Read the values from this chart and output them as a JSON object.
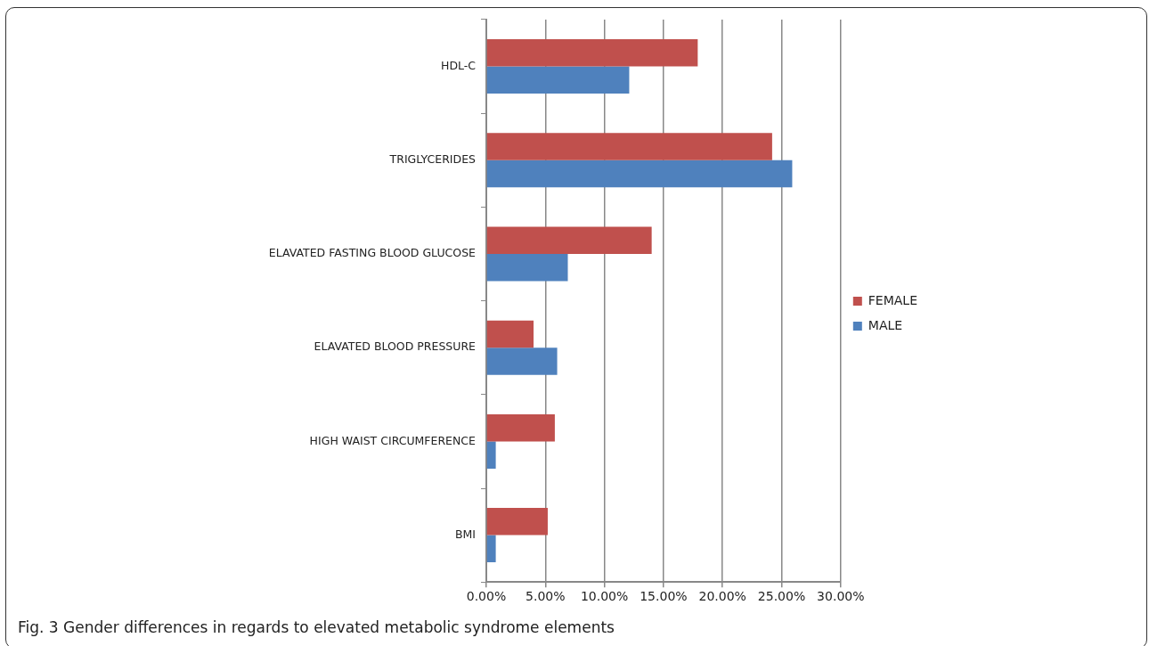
{
  "chart_data": {
    "type": "bar",
    "orientation": "horizontal",
    "title": "Fig. 3 Gender differences in regards to elevated metabolic syndrome elements",
    "categories": [
      "HDL-C",
      "TRIGLYCERIDES",
      "ELAVATED FASTING BLOOD GLUCOSE",
      "ELAVATED BLOOD PRESSURE",
      "HIGH WAIST CIRCUMFERENCE",
      "BMI"
    ],
    "series": [
      {
        "name": "FEMALE",
        "color": "#c0504d",
        "values": [
          17.9,
          24.2,
          14.0,
          4.0,
          5.8,
          5.2
        ]
      },
      {
        "name": "MALE",
        "color": "#4f81bd",
        "values": [
          12.1,
          25.9,
          6.9,
          6.0,
          0.8,
          0.8
        ]
      }
    ],
    "xlim": [
      0,
      30
    ],
    "xticks": [
      {
        "value": 0,
        "label": "0.00%"
      },
      {
        "value": 5,
        "label": "5.00%"
      },
      {
        "value": 10,
        "label": "10.00%"
      },
      {
        "value": 15,
        "label": "15.00%"
      },
      {
        "value": 20,
        "label": "20.00%"
      },
      {
        "value": 25,
        "label": "25.00%"
      },
      {
        "value": 30,
        "label": "30.00%"
      }
    ],
    "grid": "x",
    "legend": "right"
  }
}
